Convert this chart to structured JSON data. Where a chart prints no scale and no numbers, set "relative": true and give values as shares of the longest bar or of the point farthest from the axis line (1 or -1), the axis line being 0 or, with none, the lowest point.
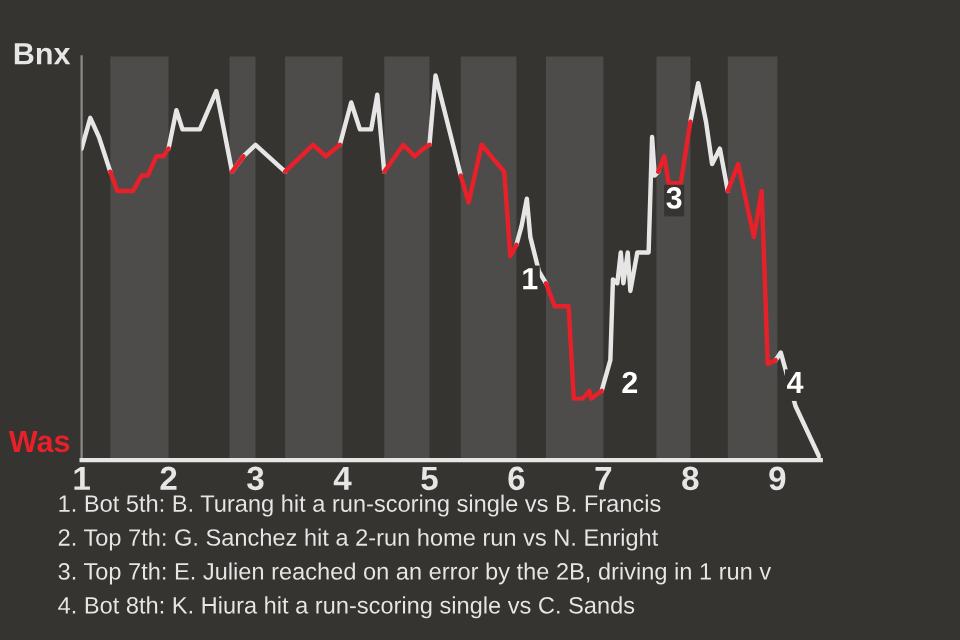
{
  "chart_data": {
    "type": "line",
    "relative": true,
    "x": [
      1.0,
      1.1,
      1.2,
      1.33,
      1.41,
      1.59,
      1.69,
      1.76,
      1.86,
      1.94,
      2.0,
      2.09,
      2.16,
      2.36,
      2.55,
      2.73,
      2.86,
      3.0,
      3.34,
      3.66,
      3.81,
      3.97,
      4.1,
      4.2,
      4.33,
      4.4,
      4.48,
      4.7,
      4.83,
      4.93,
      5.0,
      5.07,
      5.36,
      5.45,
      5.6,
      5.71,
      5.86,
      5.93,
      6.0,
      6.06,
      6.12,
      6.16,
      6.26,
      6.34,
      6.44,
      6.6,
      6.66,
      6.76,
      6.84,
      6.86,
      6.98,
      7.08,
      7.11,
      7.16,
      7.2,
      7.23,
      7.28,
      7.31,
      7.39,
      7.52,
      7.56,
      7.59,
      7.63,
      7.7,
      7.75,
      7.89,
      8.0,
      8.09,
      8.18,
      8.25,
      8.34,
      8.43,
      8.55,
      8.73,
      8.82,
      8.89,
      8.98,
      9.04,
      9.21,
      9.5
    ],
    "series": [
      {
        "color": "#e6e6e6",
        "values": [
          0.81,
          0.89,
          0.84,
          0.75,
          null,
          null,
          null,
          null,
          null,
          null,
          0.81,
          0.91,
          0.86,
          0.86,
          0.96,
          0.75,
          0.79,
          0.82,
          0.75,
          null,
          null,
          0.82,
          0.93,
          0.86,
          0.86,
          0.95,
          0.75,
          null,
          null,
          null,
          0.82,
          1,
          0.74,
          null,
          null,
          null,
          null,
          null,
          0.56,
          0.61,
          0.68,
          0.58,
          0.49,
          0.46,
          null,
          null,
          null,
          null,
          null,
          null,
          0.18,
          0.26,
          0.47,
          0.46,
          0.54,
          0.46,
          0.54,
          0.44,
          0.54,
          0.54,
          0.84,
          0.74,
          0.75,
          null,
          null,
          null,
          0.88,
          0.98,
          0.88,
          0.77,
          0.81,
          0.7,
          null,
          null,
          null,
          null,
          0.26,
          0.28,
          0.14,
          0
        ]
      },
      {
        "color": "#e8202a",
        "values": [
          null,
          null,
          null,
          0.75,
          0.7,
          0.7,
          0.74,
          0.74,
          0.79,
          0.79,
          0.81,
          null,
          null,
          null,
          null,
          0.75,
          0.79,
          null,
          0.75,
          0.82,
          0.79,
          0.82,
          null,
          null,
          null,
          null,
          0.75,
          0.82,
          0.79,
          0.81,
          0.82,
          null,
          0.74,
          0.67,
          0.82,
          0.79,
          0.75,
          0.53,
          0.56,
          null,
          null,
          null,
          null,
          0.46,
          0.4,
          0.4,
          0.16,
          0.16,
          0.18,
          0.16,
          0.18,
          null,
          null,
          null,
          null,
          null,
          null,
          null,
          null,
          null,
          null,
          null,
          0.75,
          0.79,
          0.72,
          0.72,
          0.88,
          null,
          null,
          null,
          null,
          0.7,
          0.77,
          0.58,
          0.7,
          0.25,
          0.26,
          null,
          null,
          null
        ]
      }
    ],
    "xlim": [
      1,
      9.5
    ],
    "xticks": [
      1,
      2,
      3,
      4,
      5,
      6,
      7,
      8,
      9
    ],
    "bands": [
      {
        "axis": "x",
        "from": 1.33,
        "to": 2.0,
        "color": "#4d4c4a"
      },
      {
        "axis": "x",
        "from": 2.7,
        "to": 3.0,
        "color": "#4d4c4a"
      },
      {
        "axis": "x",
        "from": 3.34,
        "to": 4.0,
        "color": "#4d4c4a"
      },
      {
        "axis": "x",
        "from": 4.48,
        "to": 5.0,
        "color": "#4d4c4a"
      },
      {
        "axis": "x",
        "from": 5.36,
        "to": 6.0,
        "color": "#4d4c4a"
      },
      {
        "axis": "x",
        "from": 6.34,
        "to": 7.0,
        "color": "#4d4c4a"
      },
      {
        "axis": "x",
        "from": 7.61,
        "to": 8.0,
        "color": "#4d4c4a"
      },
      {
        "axis": "x",
        "from": 8.43,
        "to": 9.0,
        "color": "#4d4c4a"
      }
    ],
    "annotations": [
      "Bnx",
      "Was",
      {
        "text": "1",
        "x": 5.93,
        "y": 0.53
      },
      {
        "text": "2",
        "x": 7.08,
        "y": 0.26
      },
      {
        "text": "3",
        "x": 7.59,
        "y": 0.74
      },
      {
        "text": "4",
        "x": 8.98,
        "y": 0.26
      },
      "1. Bot 5th: B. Turang hit a run-scoring single vs B. Francis",
      "2. Top 7th: G. Sanchez hit a 2-run home run vs N. Enright",
      "3. Top 7th: E. Julien reached on an error by the 2B, driving in 1 run v",
      "4. Bot 8th: K. Hiura hit a run-scoring single vs C. Sands"
    ]
  }
}
